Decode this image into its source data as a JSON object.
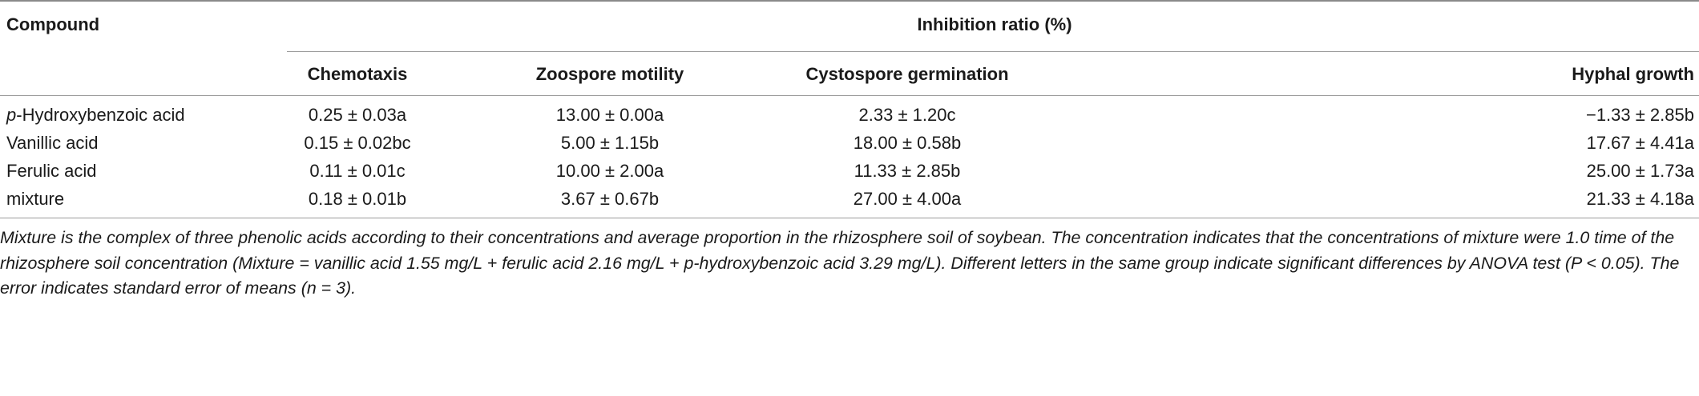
{
  "table": {
    "header": {
      "compound": "Compound",
      "group": "Inhibition ratio (%)",
      "columns": [
        "Chemotaxis",
        "Zoospore motility",
        "Cystospore germination",
        "Hyphal growth"
      ]
    },
    "rows": [
      {
        "prefix": "p",
        "name": "-Hydroxybenzoic acid",
        "values": [
          "0.25 ± 0.03a",
          "13.00 ± 0.00a",
          "2.33 ± 1.20c",
          "−1.33 ± 2.85b"
        ]
      },
      {
        "prefix": "",
        "name": "Vanillic acid",
        "values": [
          "0.15 ± 0.02bc",
          "5.00 ± 1.15b",
          "18.00 ± 0.58b",
          "17.67 ± 4.41a"
        ]
      },
      {
        "prefix": "",
        "name": "Ferulic acid",
        "values": [
          "0.11 ± 0.01c",
          "10.00 ± 2.00a",
          "11.33 ± 2.85b",
          "25.00 ± 1.73a"
        ]
      },
      {
        "prefix": "",
        "name": "mixture",
        "values": [
          "0.18 ± 0.01b",
          "3.67 ± 0.67b",
          "27.00 ± 4.00a",
          "21.33 ± 4.18a"
        ]
      }
    ],
    "footnote": "Mixture is the complex of three phenolic acids according to their concentrations and average proportion in the rhizosphere soil of soybean. The concentration indicates that the concentrations of mixture were 1.0 time of the rhizosphere soil concentration (Mixture = vanillic acid 1.55 mg/L + ferulic acid 2.16 mg/L + p-hydroxybenzoic acid 3.29 mg/L). Different letters in the same group indicate significant differences by ANOVA test (P < 0.05). The error indicates standard error of means (n = 3)."
  }
}
